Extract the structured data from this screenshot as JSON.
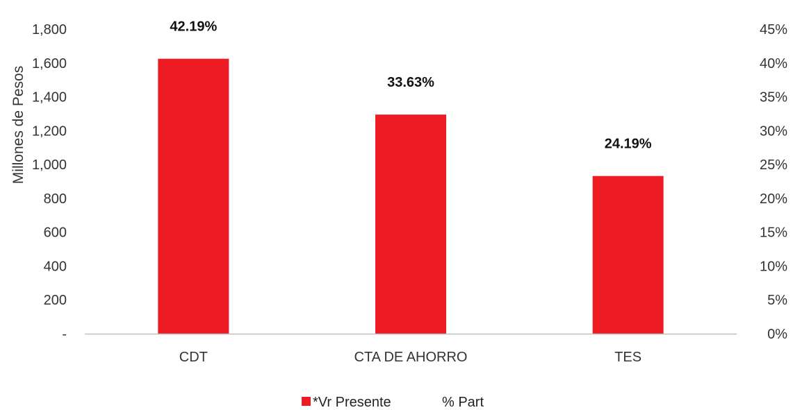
{
  "chart_data": {
    "type": "bar",
    "categories": [
      "CDT",
      "CTA DE AHORRO",
      "TES"
    ],
    "series": [
      {
        "name": "*Vr Presente",
        "axis": "left",
        "values": [
          1625,
          1295,
          932
        ]
      },
      {
        "name": "% Part",
        "axis": "right",
        "values": [
          42.19,
          33.63,
          24.19
        ],
        "shown_as": "data-labels"
      }
    ],
    "data_labels": [
      "42.19%",
      "33.63%",
      "24.19%"
    ],
    "ylabel": "Millones de Pesos",
    "ylim": [
      0,
      1800
    ],
    "y_ticks": [
      "-",
      "200",
      "400",
      "600",
      "800",
      "1,000",
      "1,200",
      "1,400",
      "1,600",
      "1,800"
    ],
    "y2lim": [
      0,
      45
    ],
    "y2_ticks": [
      "0%",
      "5%",
      "10%",
      "15%",
      "20%",
      "25%",
      "30%",
      "35%",
      "40%",
      "45%"
    ],
    "legend": [
      "*Vr Presente",
      "% Part"
    ],
    "legend_position": "bottom",
    "grid": false,
    "colors": {
      "bar": "#ED1C24",
      "axis": "#BFBFBF"
    }
  }
}
